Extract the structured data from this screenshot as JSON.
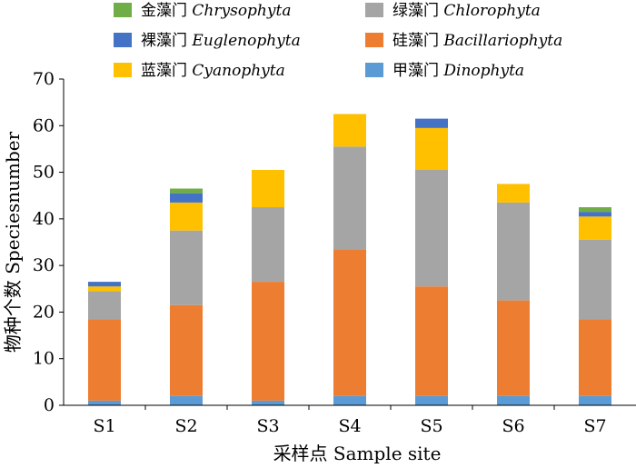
{
  "chart_data": {
    "type": "bar",
    "stacked": true,
    "categories": [
      "S1",
      "S2",
      "S3",
      "S4",
      "S5",
      "S6",
      "S7"
    ],
    "series": [
      {
        "name_cn": "甲藻门",
        "name_latin": "Dinophyta",
        "color": "#5B9BD5",
        "values": [
          1,
          2,
          1,
          2,
          2,
          2,
          2
        ]
      },
      {
        "name_cn": "硅藻门",
        "name_latin": "Bacillariophyta",
        "color": "#ED7D31",
        "values": [
          17.5,
          19.5,
          25.5,
          31.5,
          23.5,
          20.5,
          16.5
        ]
      },
      {
        "name_cn": "绿藻门",
        "name_latin": "Chlorophyta",
        "color": "#A5A5A5",
        "values": [
          6,
          16,
          16,
          22,
          25,
          21,
          17
        ]
      },
      {
        "name_cn": "蓝藻门",
        "name_latin": "Cyanophyta",
        "color": "#FFC000",
        "values": [
          1,
          6,
          8,
          7,
          9,
          4,
          5
        ]
      },
      {
        "name_cn": "裸藻门",
        "name_latin": "Euglenophyta",
        "color": "#4472C4",
        "values": [
          1,
          2,
          0,
          0,
          2,
          0,
          1
        ]
      },
      {
        "name_cn": "金藻门",
        "name_latin": "Chrysophyta",
        "color": "#70AD47",
        "values": [
          0,
          1,
          0,
          0,
          0,
          0,
          1
        ]
      }
    ],
    "legend_order": [
      [
        "Chrysophyta",
        "Chlorophyta"
      ],
      [
        "Euglenophyta",
        "Bacillariophyta"
      ],
      [
        "Cyanophyta",
        "Dinophyta"
      ]
    ],
    "xlabel": "采样点 Sample site",
    "ylabel": "物种个数 Speciesnumber",
    "ylim": [
      0,
      70
    ],
    "yticks": [
      0,
      10,
      20,
      30,
      40,
      50,
      60,
      70
    ],
    "grid": false,
    "legend_position": "top"
  }
}
